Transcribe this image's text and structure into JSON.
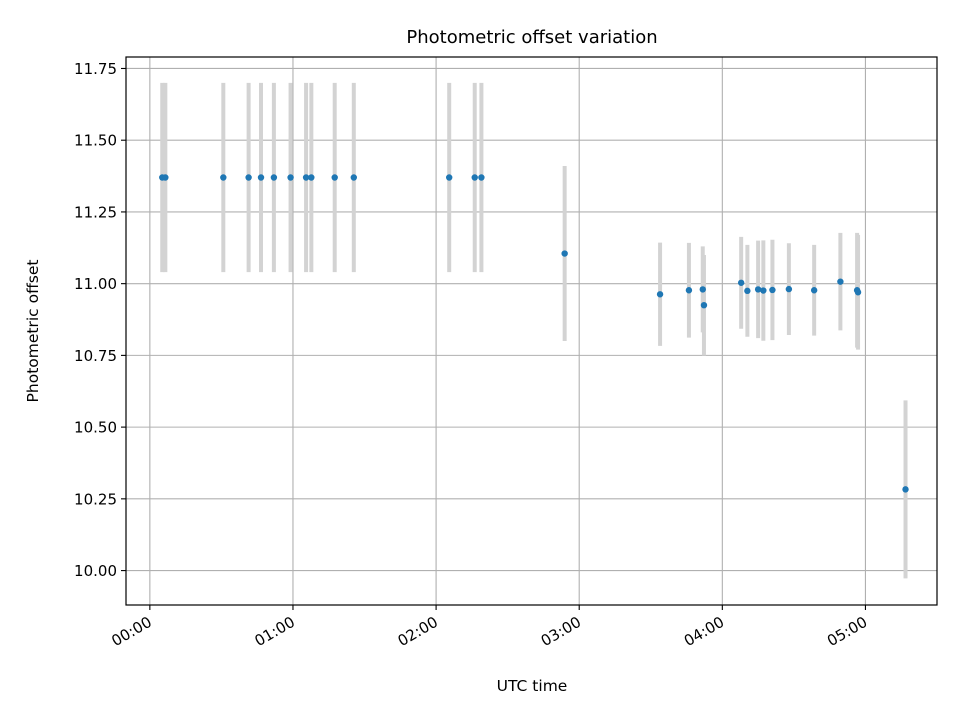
{
  "chart_data": {
    "type": "scatter",
    "title": "Photometric offset variation",
    "xlabel": "UTC time",
    "ylabel": "Photometric offset",
    "x_unit": "minutes",
    "xlim": [
      -10,
      330
    ],
    "ylim": [
      9.88,
      11.79
    ],
    "grid": true,
    "x_ticks": [
      {
        "value": 0,
        "label": "00:00"
      },
      {
        "value": 60,
        "label": "01:00"
      },
      {
        "value": 120,
        "label": "02:00"
      },
      {
        "value": 180,
        "label": "03:00"
      },
      {
        "value": 240,
        "label": "04:00"
      },
      {
        "value": 300,
        "label": "05:00"
      }
    ],
    "y_ticks": [
      {
        "value": 10.0,
        "label": "10.00"
      },
      {
        "value": 10.25,
        "label": "10.25"
      },
      {
        "value": 10.5,
        "label": "10.50"
      },
      {
        "value": 10.75,
        "label": "10.75"
      },
      {
        "value": 11.0,
        "label": "11.00"
      },
      {
        "value": 11.25,
        "label": "11.25"
      },
      {
        "value": 11.5,
        "label": "11.50"
      },
      {
        "value": 11.75,
        "label": "11.75"
      }
    ],
    "point_color": "#1f77b4",
    "errorbar_color": "#d3d3d3",
    "series": [
      {
        "points": [
          {
            "x": 5.2,
            "y": 11.37,
            "yerr": 0.33
          },
          {
            "x": 6.5,
            "y": 11.37,
            "yerr": 0.33
          },
          {
            "x": 30.8,
            "y": 11.37,
            "yerr": 0.33
          },
          {
            "x": 41.4,
            "y": 11.37,
            "yerr": 0.33
          },
          {
            "x": 46.6,
            "y": 11.37,
            "yerr": 0.33
          },
          {
            "x": 52.0,
            "y": 11.37,
            "yerr": 0.33
          },
          {
            "x": 59.0,
            "y": 11.37,
            "yerr": 0.33
          },
          {
            "x": 65.5,
            "y": 11.37,
            "yerr": 0.33
          },
          {
            "x": 67.7,
            "y": 11.37,
            "yerr": 0.33
          },
          {
            "x": 77.5,
            "y": 11.37,
            "yerr": 0.33
          },
          {
            "x": 85.5,
            "y": 11.37,
            "yerr": 0.33
          },
          {
            "x": 125.5,
            "y": 11.37,
            "yerr": 0.33
          },
          {
            "x": 136.2,
            "y": 11.37,
            "yerr": 0.33
          },
          {
            "x": 139.0,
            "y": 11.37,
            "yerr": 0.33
          },
          {
            "x": 173.9,
            "y": 11.105,
            "yerr": 0.305
          },
          {
            "x": 213.9,
            "y": 10.963,
            "yerr": 0.18
          },
          {
            "x": 226.0,
            "y": 10.977,
            "yerr": 0.165
          },
          {
            "x": 231.8,
            "y": 10.98,
            "yerr": 0.15
          },
          {
            "x": 232.3,
            "y": 10.925,
            "yerr": 0.175
          },
          {
            "x": 247.9,
            "y": 11.003,
            "yerr": 0.16
          },
          {
            "x": 250.5,
            "y": 10.975,
            "yerr": 0.16
          },
          {
            "x": 255.0,
            "y": 10.98,
            "yerr": 0.17
          },
          {
            "x": 257.2,
            "y": 10.976,
            "yerr": 0.175
          },
          {
            "x": 261.0,
            "y": 10.978,
            "yerr": 0.175
          },
          {
            "x": 267.9,
            "y": 10.981,
            "yerr": 0.16
          },
          {
            "x": 278.5,
            "y": 10.977,
            "yerr": 0.158
          },
          {
            "x": 289.5,
            "y": 11.007,
            "yerr": 0.17
          },
          {
            "x": 296.5,
            "y": 10.977,
            "yerr": 0.2
          },
          {
            "x": 296.9,
            "y": 10.97,
            "yerr": 0.2
          },
          {
            "x": 316.8,
            "y": 10.283,
            "yerr": 0.31
          }
        ]
      }
    ]
  }
}
